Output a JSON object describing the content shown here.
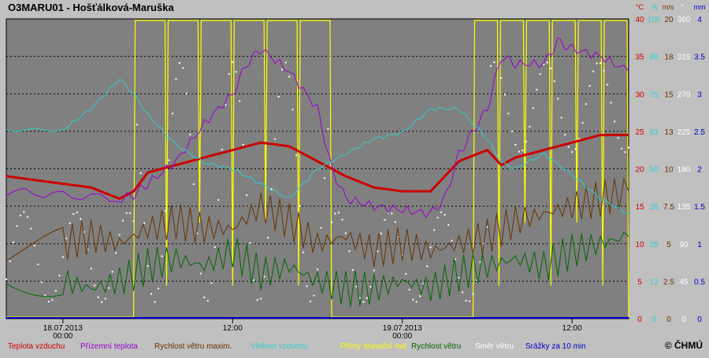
{
  "title": "O3MARU01 - Hošťálková-Maruška",
  "copyright": "© ČHMÚ",
  "axis_units": [
    "°C",
    "%",
    "m/s",
    "°",
    "mm"
  ],
  "colors": {
    "background": "#c0c0c0",
    "plot_background": "#808080",
    "temperature": "#cc0000",
    "ground_temperature": "#9900cc",
    "wind_gust": "#663300",
    "humidity": "#33cccc",
    "sunshine": "#ffff00",
    "wind_speed": "#006600",
    "wind_direction": "#ffffff",
    "precipitation": "#0000cc"
  },
  "x_ticks": [
    {
      "t": 0,
      "label": "18.07.2013\n00:00"
    },
    {
      "t": 12,
      "label": "12:00"
    },
    {
      "t": 24,
      "label": "19.07.2013\n00:00"
    },
    {
      "t": 36,
      "label": "12:00"
    }
  ],
  "right_axes": {
    "temp": [
      "40",
      "35",
      "30",
      "25",
      "20",
      "15",
      "10",
      "5",
      "0"
    ],
    "humidity": [
      "100",
      "88",
      "75",
      "63",
      "50",
      "38",
      "25",
      "13",
      "0"
    ],
    "wind": [
      "20",
      "18",
      "15",
      "13",
      "10",
      "7.5",
      "5",
      "2.5",
      "0"
    ],
    "direction": [
      "360",
      "315",
      "270",
      "225",
      "180",
      "135",
      "90",
      "45",
      "0"
    ],
    "precip": [
      "4",
      "3.5",
      "3",
      "2.5",
      "2",
      "1.5",
      "1",
      "0.5",
      "0"
    ]
  },
  "legend": [
    {
      "label": "Teplota vzduchu",
      "color": "#cc0000"
    },
    {
      "label": "Přízemní teplota",
      "color": "#9900cc"
    },
    {
      "label": "Rychlost větru maxim.",
      "color": "#663300"
    },
    {
      "label": "Vlhkost vzduchu",
      "color": "#33cccc"
    },
    {
      "label": "Přímý sluneční svit",
      "color": "#ffff00"
    },
    {
      "label": "Rychlost větru",
      "color": "#006600"
    },
    {
      "label": "Směr větru",
      "color": "#ffffff"
    },
    {
      "label": "Srážky za 10 min",
      "color": "#0000cc"
    }
  ],
  "chart_data": {
    "type": "line",
    "title": "O3MARU01 - Hošťálková-Maruška",
    "x_unit": "hours from 18.07.2013 00:00",
    "xlim": [
      -4,
      40
    ],
    "grid": true,
    "series": [
      {
        "name": "Teplota vzduchu",
        "unit": "°C",
        "axis": "temp",
        "points": [
          [
            -4,
            19
          ],
          [
            0,
            18
          ],
          [
            2,
            17.5
          ],
          [
            4,
            16
          ],
          [
            5,
            17
          ],
          [
            6,
            19.5
          ],
          [
            8,
            20.5
          ],
          [
            10,
            21.5
          ],
          [
            12,
            22.5
          ],
          [
            14,
            23.5
          ],
          [
            16,
            23
          ],
          [
            18,
            21
          ],
          [
            20,
            19
          ],
          [
            22,
            17.5
          ],
          [
            24,
            17
          ],
          [
            26,
            17
          ],
          [
            27,
            19
          ],
          [
            28,
            21
          ],
          [
            30,
            22.5
          ],
          [
            31,
            20.5
          ],
          [
            32,
            21.5
          ],
          [
            34,
            22.5
          ],
          [
            36,
            23.5
          ],
          [
            38,
            24.5
          ],
          [
            40,
            24.5
          ]
        ]
      },
      {
        "name": "Přízemní teplota",
        "unit": "°C",
        "axis": "temp",
        "points": [
          [
            -4,
            17
          ],
          [
            0,
            16.5
          ],
          [
            4,
            16
          ],
          [
            5,
            16.5
          ],
          [
            6,
            18
          ],
          [
            8,
            21
          ],
          [
            10,
            26
          ],
          [
            12,
            30
          ],
          [
            13,
            34
          ],
          [
            14,
            36
          ],
          [
            16,
            33
          ],
          [
            18,
            28
          ],
          [
            19,
            20
          ],
          [
            20,
            16
          ],
          [
            22,
            15
          ],
          [
            24,
            14.5
          ],
          [
            26,
            14
          ],
          [
            27,
            16
          ],
          [
            28,
            22
          ],
          [
            29,
            25
          ],
          [
            30,
            28
          ],
          [
            31,
            35
          ],
          [
            32,
            34
          ],
          [
            34,
            34
          ],
          [
            35,
            37
          ],
          [
            36,
            36
          ],
          [
            38,
            35
          ],
          [
            40,
            33
          ]
        ]
      },
      {
        "name": "Rychlost větru maxim.",
        "unit": "m/s",
        "axis": "wind",
        "points": [
          [
            -4,
            4.5
          ],
          [
            0,
            5
          ],
          [
            2,
            5.5
          ],
          [
            4,
            5
          ],
          [
            6,
            6
          ],
          [
            8,
            6.5
          ],
          [
            10,
            6
          ],
          [
            12,
            6
          ],
          [
            14,
            7.5
          ],
          [
            16,
            6.5
          ],
          [
            18,
            5
          ],
          [
            20,
            5.5
          ],
          [
            22,
            4.5
          ],
          [
            24,
            5
          ],
          [
            26,
            4.5
          ],
          [
            28,
            5
          ],
          [
            30,
            5.5
          ],
          [
            32,
            6.5
          ],
          [
            34,
            7
          ],
          [
            36,
            7.5
          ],
          [
            38,
            8
          ],
          [
            40,
            8.5
          ]
        ]
      },
      {
        "name": "Vlhkost vzduchu",
        "unit": "%",
        "axis": "humidity",
        "points": [
          [
            -4,
            63
          ],
          [
            0,
            63
          ],
          [
            2,
            70
          ],
          [
            4,
            80
          ],
          [
            5,
            75
          ],
          [
            6,
            68
          ],
          [
            8,
            58
          ],
          [
            10,
            52
          ],
          [
            12,
            50
          ],
          [
            14,
            45
          ],
          [
            16,
            40
          ],
          [
            18,
            50
          ],
          [
            20,
            55
          ],
          [
            22,
            60
          ],
          [
            24,
            62
          ],
          [
            26,
            70
          ],
          [
            28,
            70
          ],
          [
            29,
            65
          ],
          [
            30,
            60
          ],
          [
            31,
            52
          ],
          [
            32,
            50
          ],
          [
            34,
            55
          ],
          [
            36,
            48
          ],
          [
            38,
            40
          ],
          [
            40,
            35
          ]
        ]
      },
      {
        "name": "Rychlost větru",
        "unit": "m/s",
        "axis": "wind",
        "points": [
          [
            -4,
            3
          ],
          [
            0,
            2.5
          ],
          [
            2,
            2
          ],
          [
            4,
            2.5
          ],
          [
            6,
            3.5
          ],
          [
            8,
            4
          ],
          [
            10,
            3.5
          ],
          [
            12,
            4.5
          ],
          [
            14,
            3
          ],
          [
            16,
            3.5
          ],
          [
            18,
            2.5
          ],
          [
            20,
            2
          ],
          [
            22,
            2
          ],
          [
            24,
            2.5
          ],
          [
            26,
            2
          ],
          [
            28,
            3
          ],
          [
            30,
            3.5
          ],
          [
            32,
            4
          ],
          [
            34,
            3.5
          ],
          [
            36,
            4.5
          ],
          [
            38,
            5
          ],
          [
            40,
            5.5
          ]
        ]
      }
    ],
    "sunshine_periods_hours": [
      [
        5,
        19
      ],
      [
        29,
        40
      ]
    ],
    "precipitation": "0 mm",
    "wind_direction_range_deg": [
      0,
      360
    ]
  }
}
